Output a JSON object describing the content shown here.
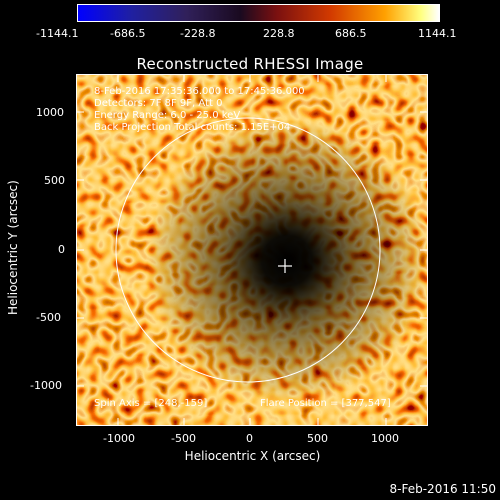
{
  "colorbar": {
    "ticks": [
      "-1144.1",
      "-686.5",
      "-228.8",
      "228.8",
      "686.5",
      "1144.1"
    ]
  },
  "title": "Reconstructed RHESSI Image",
  "annotations": {
    "time": "8-Feb-2016 17:35:36.000 to 17:45:36.000",
    "detectors": "Detectors: 7F 8F 9F, Att 0",
    "energy": "Energy Range: 6.0 - 25.0 keV",
    "method": "Back Projection    Total counts: 1.15E+04",
    "spin_axis": "Spin Axis = [248,-159]",
    "flare_position": "Flare Position = [377,547]"
  },
  "axes": {
    "xlabel": "Heliocentric X (arcsec)",
    "ylabel": "Heliocentric Y (arcsec)",
    "x_ticks": [
      "-1000",
      "-500",
      "0",
      "500",
      "1000"
    ],
    "y_ticks": [
      "1000",
      "500",
      "0",
      "-500",
      "-1000"
    ]
  },
  "footer_timestamp": "8-Feb-2016 11:50"
}
